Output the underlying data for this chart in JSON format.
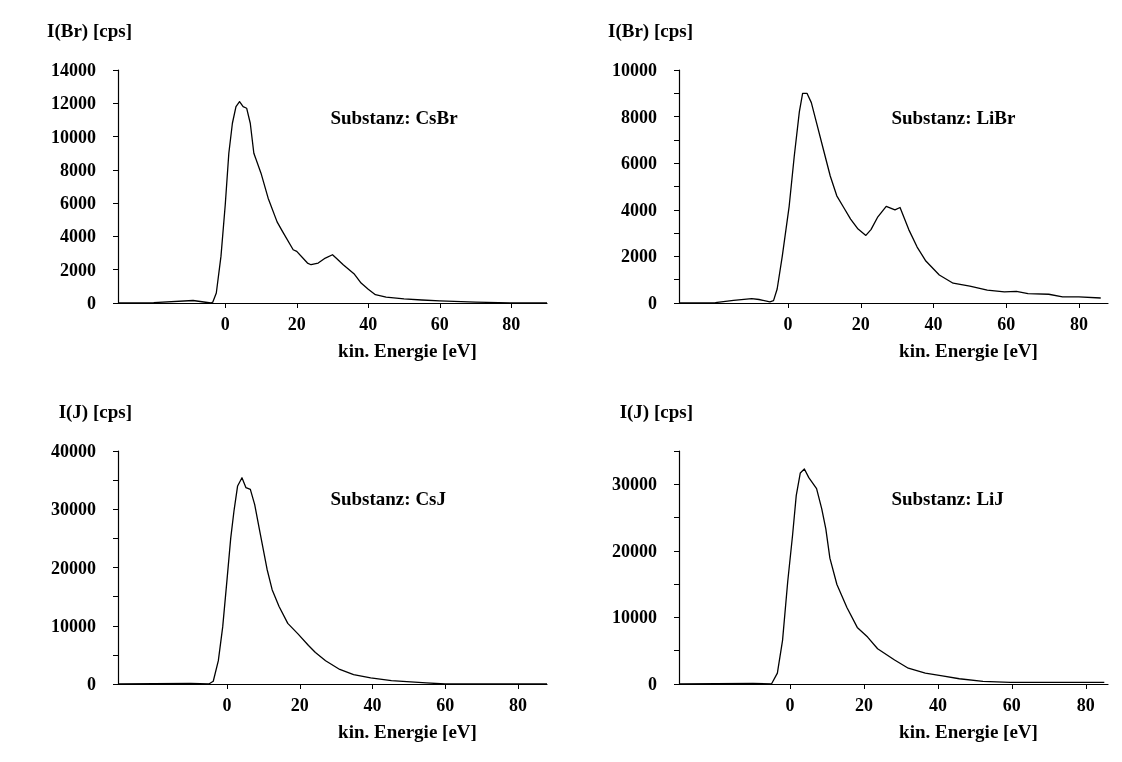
{
  "chart_data": [
    {
      "type": "line",
      "title": "Substanz: CsBr",
      "xlabel": "kin. Energie [eV]",
      "ylabel": "I(Br) [cps]",
      "xlim": [
        -30,
        90
      ],
      "xticks": [
        0,
        20,
        40,
        60,
        80
      ],
      "ylim": [
        0,
        14000
      ],
      "yticks": [
        0,
        2000,
        4000,
        6000,
        8000,
        10000,
        12000,
        14000
      ],
      "grid": false,
      "series": [
        {
          "color": "#000000",
          "x": [
            -30,
            -20,
            -9,
            -5,
            -4,
            -3.5,
            -2.5,
            -1.2,
            0,
            1,
            2,
            3,
            4,
            5,
            6,
            7,
            8,
            10,
            12,
            14.5,
            16,
            19,
            20,
            23,
            24,
            26,
            28,
            30,
            31,
            33,
            36,
            38,
            40,
            42,
            45,
            50,
            55,
            60,
            70,
            80,
            90
          ],
          "values": [
            0,
            20,
            150,
            30,
            0,
            50,
            600,
            2800,
            5900,
            9000,
            10800,
            11800,
            12100,
            11800,
            11700,
            10800,
            9000,
            7800,
            6300,
            4875,
            4300,
            3200,
            3100,
            2400,
            2300,
            2400,
            2700,
            2900,
            2700,
            2300,
            1760,
            1200,
            830,
            500,
            350,
            250,
            180,
            130,
            50,
            0,
            0
          ]
        }
      ]
    },
    {
      "type": "line",
      "title": "Substanz: LiBr",
      "xlabel": "kin. Energie [eV]",
      "ylabel": "I(Br) [cps]",
      "xlim": [
        -30,
        88
      ],
      "xticks": [
        0,
        20,
        40,
        60,
        80
      ],
      "ylim": [
        0,
        10000
      ],
      "yticks": [
        0,
        {
          "value": 1000,
          "label": null
        },
        2000,
        {
          "value": 3000,
          "label": null
        },
        4000,
        {
          "value": 5000,
          "label": null
        },
        6000,
        {
          "value": 7000,
          "label": null
        },
        8000,
        {
          "value": 9000,
          "label": null
        },
        10000
      ],
      "grid": false,
      "series": [
        {
          "color": "#000000",
          "x": [
            -30,
            -20,
            -15,
            -10,
            -8,
            -5,
            -4,
            -3,
            -1.6,
            0.3,
            1.7,
            3.1,
            4,
            5.2,
            6.4,
            7.8,
            9.7,
            11.6,
            13.4,
            15.3,
            17.2,
            19.1,
            21.4,
            22.8,
            24.7,
            27,
            29.4,
            30.8,
            33.2,
            35.5,
            37.9,
            41.6,
            45.4,
            50,
            54.8,
            59.5,
            62.8,
            66,
            71.7,
            75.5,
            80,
            86
          ],
          "values": [
            0,
            20,
            115,
            190,
            150,
            50,
            100,
            600,
            2000,
            4150,
            6300,
            8200,
            9000,
            9000,
            8600,
            7750,
            6600,
            5450,
            4600,
            4100,
            3600,
            3200,
            2900,
            3150,
            3700,
            4150,
            4000,
            4100,
            3150,
            2400,
            1800,
            1200,
            850,
            720,
            550,
            480,
            500,
            400,
            375,
            260,
            260,
            215
          ]
        }
      ]
    },
    {
      "type": "line",
      "title": "Substanz: CsJ",
      "xlabel": "kin. Energie [eV]",
      "ylabel": "I(J) [cps]",
      "xlim": [
        -30,
        88
      ],
      "xticks": [
        0,
        20,
        40,
        60,
        80
      ],
      "ylim": [
        0,
        40000
      ],
      "yticks": [
        0,
        {
          "value": 5000,
          "label": null
        },
        10000,
        {
          "value": 15000,
          "label": null
        },
        20000,
        {
          "value": 25000,
          "label": null
        },
        30000,
        {
          "value": 35000,
          "label": null
        },
        40000
      ],
      "grid": false,
      "series": [
        {
          "color": "#000000",
          "x": [
            -30,
            -10,
            -5,
            -3.8,
            -2.4,
            -1.2,
            0,
            1,
            1.9,
            2.9,
            4.1,
            5.2,
            6.4,
            7.6,
            9,
            11,
            12.4,
            14.3,
            16.7,
            19.5,
            22.4,
            24.3,
            27.1,
            31,
            34.8,
            39.5,
            45.2,
            54.8,
            60,
            88
          ],
          "values": [
            0,
            100,
            0,
            470,
            4000,
            9800,
            18000,
            25000,
            29700,
            34000,
            35400,
            33700,
            33400,
            30800,
            26200,
            19700,
            16200,
            13300,
            10400,
            8600,
            6600,
            5400,
            4000,
            2500,
            1600,
            1050,
            580,
            200,
            0,
            0
          ]
        }
      ]
    },
    {
      "type": "line",
      "title": "Substanz: LiJ",
      "xlabel": "kin. Energie [eV]",
      "ylabel": "I(J) [cps]",
      "xlim": [
        -30,
        86
      ],
      "xticks": [
        0,
        20,
        40,
        60,
        80
      ],
      "ylim": [
        0,
        35000
      ],
      "yticks": [
        0,
        {
          "value": 5000,
          "label": null
        },
        10000,
        {
          "value": 15000,
          "label": null
        },
        20000,
        {
          "value": 25000,
          "label": null
        },
        30000,
        {
          "value": 35000,
          "label": null
        }
      ],
      "grid": false,
      "series": [
        {
          "color": "#000000",
          "x": [
            -30,
            -10,
            -5,
            -3.4,
            -2,
            -0.6,
            0.7,
            1.7,
            2.8,
            3.9,
            5.1,
            7.2,
            8.6,
            9.7,
            10.8,
            12.7,
            15.4,
            18.2,
            21,
            23.7,
            28.3,
            32,
            36.6,
            41.2,
            45.8,
            52.2,
            59.6,
            70.6,
            80,
            85
          ],
          "values": [
            0,
            100,
            0,
            1630,
            6560,
            15400,
            22300,
            28300,
            31700,
            32300,
            31000,
            29350,
            26300,
            23300,
            18900,
            14950,
            11500,
            8500,
            7050,
            5300,
            3600,
            2370,
            1630,
            1230,
            790,
            390,
            250,
            250,
            250,
            250
          ]
        }
      ]
    }
  ]
}
